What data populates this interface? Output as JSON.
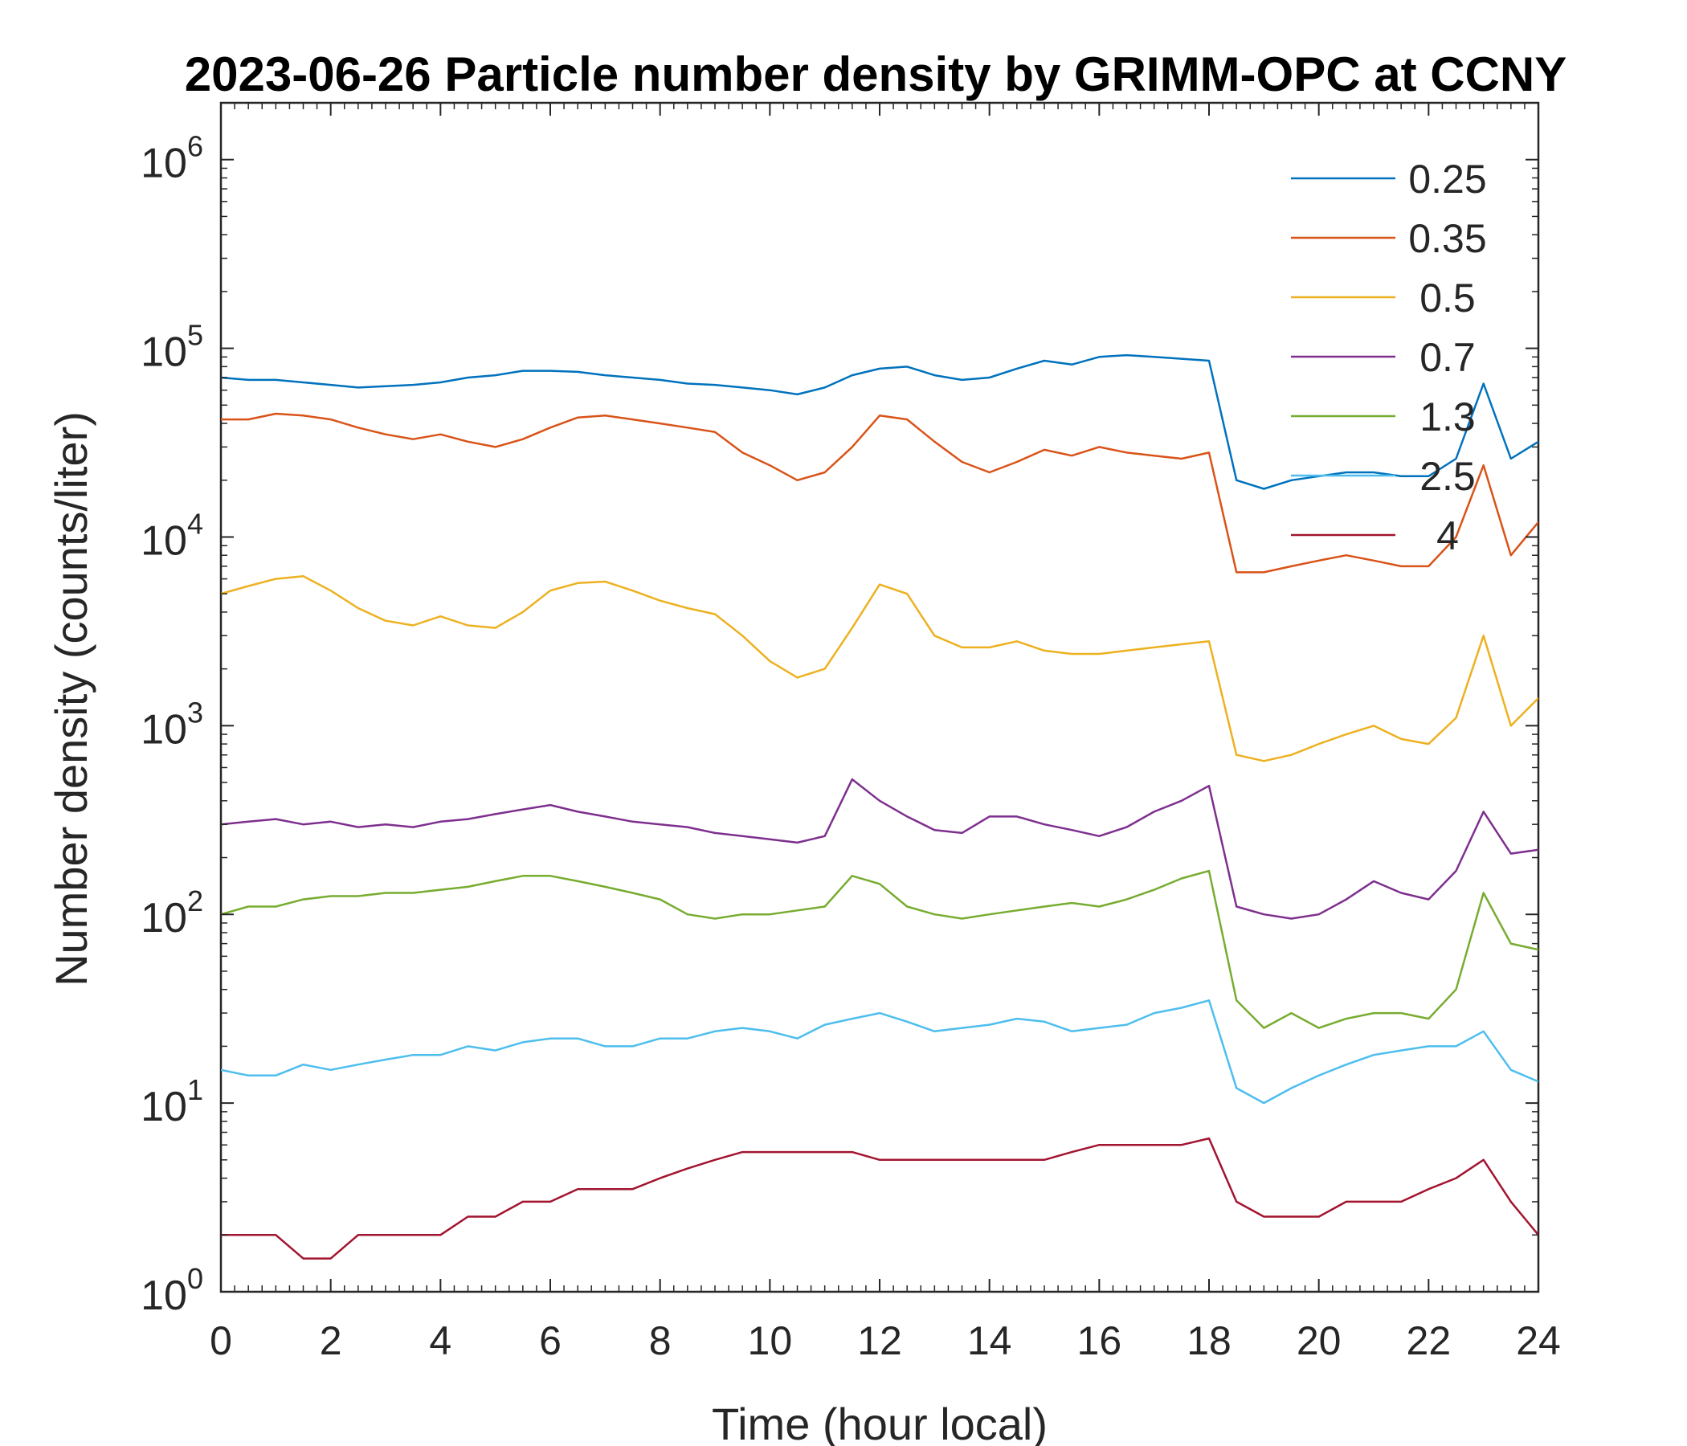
{
  "chart_data": {
    "type": "line",
    "title": "2023-06-26 Particle number density by GRIMM-OPC at CCNY",
    "xlabel": "Time (hour local)",
    "ylabel": "Number density (counts/liter)",
    "xlim": [
      0,
      24
    ],
    "ylim": [
      1,
      2000000
    ],
    "yscale": "log",
    "xticks": [
      0,
      2,
      4,
      6,
      8,
      10,
      12,
      14,
      16,
      18,
      20,
      22,
      24
    ],
    "xtick_labels": [
      "0",
      "2",
      "4",
      "6",
      "8",
      "10",
      "12",
      "14",
      "16",
      "18",
      "20",
      "22",
      "24"
    ],
    "yticks": [
      1,
      10,
      100,
      1000,
      10000,
      100000,
      1000000
    ],
    "ytick_labels": [
      {
        "base": "10",
        "exp": "0"
      },
      {
        "base": "10",
        "exp": "1"
      },
      {
        "base": "10",
        "exp": "2"
      },
      {
        "base": "10",
        "exp": "3"
      },
      {
        "base": "10",
        "exp": "4"
      },
      {
        "base": "10",
        "exp": "5"
      },
      {
        "base": "10",
        "exp": "6"
      }
    ],
    "grid": false,
    "legend_position": "top-right",
    "x": [
      0,
      0.5,
      1,
      1.5,
      2,
      2.5,
      3,
      3.5,
      4,
      4.5,
      5,
      5.5,
      6,
      6.5,
      7,
      7.5,
      8,
      8.5,
      9,
      9.5,
      10,
      10.5,
      11,
      11.5,
      12,
      12.5,
      13,
      13.5,
      14,
      14.5,
      15,
      15.5,
      16,
      16.5,
      17,
      17.5,
      18,
      18.5,
      19,
      19.5,
      20,
      20.5,
      21,
      21.5,
      22,
      22.5,
      23,
      23.5,
      24
    ],
    "series": [
      {
        "name": "0.25",
        "color": "#0072BD",
        "values": [
          70000,
          68000,
          68000,
          66000,
          64000,
          62000,
          63000,
          64000,
          66000,
          70000,
          72000,
          76000,
          76000,
          75000,
          72000,
          70000,
          68000,
          65000,
          64000,
          62000,
          60000,
          57000,
          62000,
          72000,
          78000,
          80000,
          72000,
          68000,
          70000,
          78000,
          86000,
          82000,
          90000,
          92000,
          90000,
          88000,
          86000,
          20000,
          18000,
          20000,
          21000,
          22000,
          22000,
          21000,
          21000,
          26000,
          65000,
          26000,
          32000
        ]
      },
      {
        "name": "0.35",
        "color": "#D95319",
        "values": [
          42000,
          42000,
          45000,
          44000,
          42000,
          38000,
          35000,
          33000,
          35000,
          32000,
          30000,
          33000,
          38000,
          43000,
          44000,
          42000,
          40000,
          38000,
          36000,
          28000,
          24000,
          20000,
          22000,
          30000,
          44000,
          42000,
          32000,
          25000,
          22000,
          25000,
          29000,
          27000,
          30000,
          28000,
          27000,
          26000,
          28000,
          6500,
          6500,
          7000,
          7500,
          8000,
          7500,
          7000,
          7000,
          10000,
          24000,
          8000,
          12000
        ]
      },
      {
        "name": "0.5",
        "color": "#EDB120",
        "values": [
          5000,
          5500,
          6000,
          6200,
          5200,
          4200,
          3600,
          3400,
          3800,
          3400,
          3300,
          4000,
          5200,
          5700,
          5800,
          5200,
          4600,
          4200,
          3900,
          3000,
          2200,
          1800,
          2000,
          3300,
          5600,
          5000,
          3000,
          2600,
          2600,
          2800,
          2500,
          2400,
          2400,
          2500,
          2600,
          2700,
          2800,
          700,
          650,
          700,
          800,
          900,
          1000,
          850,
          800,
          1100,
          3000,
          1000,
          1400
        ]
      },
      {
        "name": "0.7",
        "color": "#7E2F8E",
        "values": [
          300,
          310,
          320,
          300,
          310,
          290,
          300,
          290,
          310,
          320,
          340,
          360,
          380,
          350,
          330,
          310,
          300,
          290,
          270,
          260,
          250,
          240,
          260,
          520,
          400,
          330,
          280,
          270,
          330,
          330,
          300,
          280,
          260,
          290,
          350,
          400,
          480,
          110,
          100,
          95,
          100,
          120,
          150,
          130,
          120,
          170,
          350,
          210,
          220
        ]
      },
      {
        "name": "1.3",
        "color": "#77AC30",
        "values": [
          100,
          110,
          110,
          120,
          125,
          125,
          130,
          130,
          135,
          140,
          150,
          160,
          160,
          150,
          140,
          130,
          120,
          100,
          95,
          100,
          100,
          105,
          110,
          160,
          145,
          110,
          100,
          95,
          100,
          105,
          110,
          115,
          110,
          120,
          135,
          155,
          170,
          35,
          25,
          30,
          25,
          28,
          30,
          30,
          28,
          40,
          130,
          70,
          65
        ]
      },
      {
        "name": "2.5",
        "color": "#4DBEEE",
        "values": [
          15,
          14,
          14,
          16,
          15,
          16,
          17,
          18,
          18,
          20,
          19,
          21,
          22,
          22,
          20,
          20,
          22,
          22,
          24,
          25,
          24,
          22,
          26,
          28,
          30,
          27,
          24,
          25,
          26,
          28,
          27,
          24,
          25,
          26,
          30,
          32,
          35,
          12,
          10,
          12,
          14,
          16,
          18,
          19,
          20,
          20,
          24,
          15,
          13
        ]
      },
      {
        "name": "4",
        "color": "#A2142F",
        "values": [
          2,
          2,
          2,
          1.5,
          1.5,
          2,
          2,
          2,
          2,
          2.5,
          2.5,
          3,
          3,
          3.5,
          3.5,
          3.5,
          4,
          4.5,
          5,
          5.5,
          5.5,
          5.5,
          5.5,
          5.5,
          5,
          5,
          5,
          5,
          5,
          5,
          5,
          5.5,
          6,
          6,
          6,
          6,
          6.5,
          3,
          2.5,
          2.5,
          2.5,
          3,
          3,
          3,
          3.5,
          4,
          5,
          3,
          2
        ]
      }
    ]
  }
}
